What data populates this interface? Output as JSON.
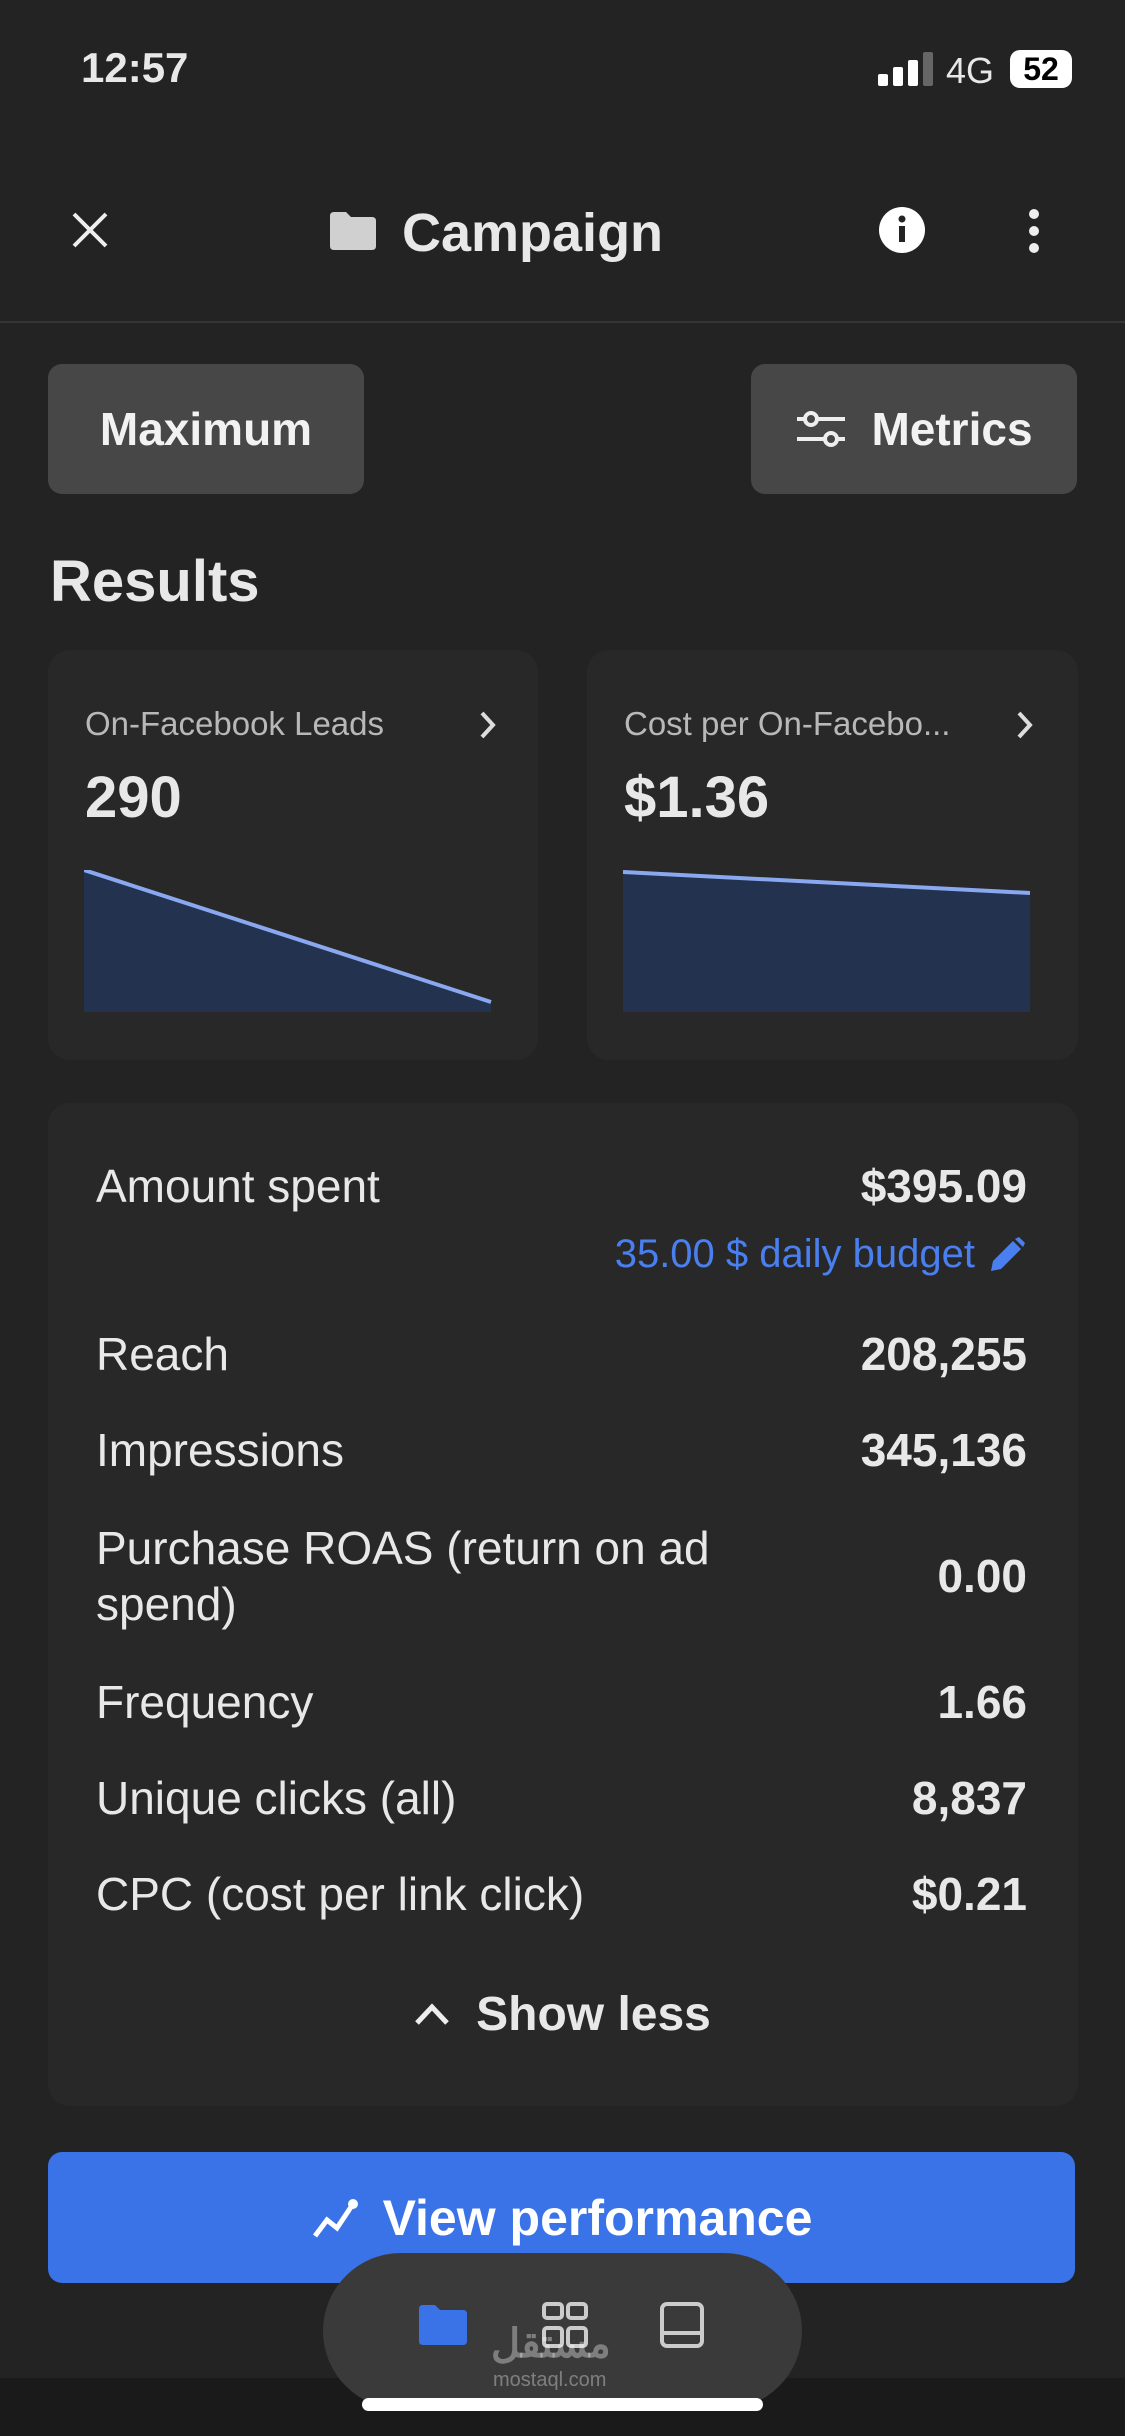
{
  "status_bar": {
    "time": "12:57",
    "network": "4G",
    "battery": "52"
  },
  "header": {
    "title": "Campaign"
  },
  "toolbar": {
    "date_range": "Maximum",
    "metrics_button": "Metrics"
  },
  "results": {
    "heading": "Results",
    "cards": [
      {
        "label": "On-Facebook Leads",
        "value": "290"
      },
      {
        "label": "Cost per On-Facebo...",
        "value": "$1.36"
      }
    ]
  },
  "metrics": {
    "rows": [
      {
        "label": "Amount spent",
        "value": "$395.09",
        "note": "35.00 $ daily budget"
      },
      {
        "label": "Reach",
        "value": "208,255"
      },
      {
        "label": "Impressions",
        "value": "345,136"
      },
      {
        "label": "Purchase ROAS (return on ad spend)",
        "value": "0.00"
      },
      {
        "label": "Frequency",
        "value": "1.66"
      },
      {
        "label": "Unique clicks (all)",
        "value": "8,837"
      },
      {
        "label": "CPC (cost per link click)",
        "value": "$0.21"
      }
    ],
    "toggle": "Show less"
  },
  "primary_action": "View performance",
  "watermark": {
    "arabic": "مستقل",
    "latin": "mostaql.com"
  }
}
